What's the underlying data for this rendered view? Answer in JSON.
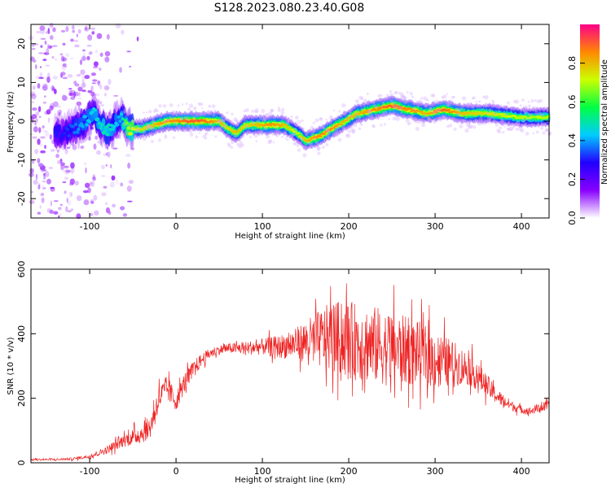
{
  "title": "S128.2023.080.23.40.G08",
  "chart_data": [
    {
      "type": "heatmap",
      "xlabel": "Height of straight line (km)",
      "ylabel": "Frequency (Hz)",
      "xlim": [
        -168,
        432
      ],
      "ylim": [
        -25,
        25
      ],
      "xticks": [
        -100,
        0,
        100,
        200,
        300,
        400
      ],
      "yticks": [
        -20,
        -10,
        0,
        10,
        20
      ],
      "colorbar": {
        "label": "Normalized spectral amplitude",
        "ticks": [
          "0.0",
          "0.2",
          "0.4",
          "0.6",
          "0.8"
        ],
        "range": [
          0,
          1
        ],
        "colormap": [
          "#ffffff",
          "#8800ff",
          "#2200ff",
          "#00ccff",
          "#00ff44",
          "#ccff00",
          "#ff8800",
          "#ff0088"
        ]
      },
      "ridge": {
        "x": [
          -130,
          -110,
          -95,
          -80,
          -65,
          -55,
          -40,
          -25,
          -10,
          0,
          15,
          30,
          50,
          60,
          70,
          80,
          95,
          110,
          125,
          140,
          150,
          165,
          180,
          195,
          210,
          230,
          250,
          270,
          290,
          310,
          330,
          360,
          400,
          432
        ],
        "y": [
          -3,
          -1,
          2,
          -3,
          1,
          -2,
          -2,
          -1,
          0,
          0,
          0,
          0,
          0,
          -2,
          -3,
          -1,
          -1,
          -1,
          -1,
          -3,
          -5,
          -4,
          -2,
          0,
          2,
          3,
          4,
          3,
          2,
          3,
          2,
          2,
          1,
          1
        ],
        "amplitude": [
          0.3,
          0.4,
          0.45,
          0.5,
          0.4,
          0.7,
          0.75,
          0.8,
          0.85,
          0.85,
          0.9,
          0.9,
          0.8,
          0.75,
          0.8,
          0.75,
          0.8,
          0.85,
          0.8,
          0.7,
          0.8,
          0.85,
          0.85,
          0.8,
          0.8,
          0.85,
          0.9,
          0.85,
          0.8,
          0.9,
          0.8,
          0.75,
          0.7,
          0.7
        ]
      }
    },
    {
      "type": "line",
      "xlabel": "Height of straight line (km)",
      "ylabel": "SNR (10 * v/v)",
      "xlim": [
        -168,
        432
      ],
      "ylim": [
        0,
        600
      ],
      "xticks": [
        -100,
        0,
        100,
        200,
        300,
        400
      ],
      "yticks": [
        0,
        200,
        400,
        600
      ],
      "color": "#ee2222",
      "series": [
        {
          "x": [
            -168,
            -140,
            -120,
            -100,
            -80,
            -60,
            -50,
            -40,
            -30,
            -20,
            -10,
            0,
            10,
            20,
            30,
            40,
            50,
            60,
            80,
            100,
            120,
            140,
            160,
            180,
            200,
            220,
            240,
            260,
            280,
            300,
            320,
            340,
            360,
            370,
            380,
            390,
            400,
            410,
            420,
            432
          ],
          "values": [
            10,
            10,
            12,
            20,
            40,
            70,
            80,
            90,
            110,
            200,
            230,
            190,
            250,
            290,
            320,
            340,
            350,
            355,
            355,
            360,
            360,
            370,
            380,
            390,
            380,
            370,
            360,
            350,
            340,
            320,
            310,
            290,
            240,
            210,
            190,
            175,
            165,
            160,
            170,
            175
          ],
          "spread": [
            3,
            3,
            4,
            6,
            12,
            20,
            25,
            30,
            35,
            40,
            40,
            30,
            30,
            25,
            20,
            15,
            15,
            15,
            20,
            25,
            35,
            50,
            80,
            110,
            120,
            120,
            120,
            110,
            100,
            90,
            70,
            50,
            35,
            25,
            20,
            15,
            12,
            12,
            15,
            15
          ]
        }
      ]
    }
  ]
}
